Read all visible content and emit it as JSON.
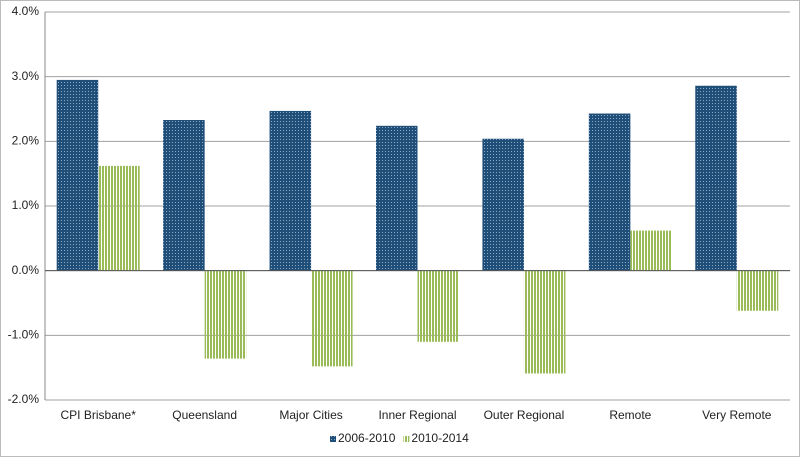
{
  "chart_data": {
    "type": "bar",
    "categories": [
      "CPI Brisbane*",
      "Queensland",
      "Major Cities",
      "Inner Regional",
      "Outer Regional",
      "Remote",
      "Very Remote"
    ],
    "series": [
      {
        "name": "2006-2010",
        "color": "#1f4e79",
        "values": [
          2.95,
          2.33,
          2.47,
          2.24,
          2.04,
          2.43,
          2.86
        ]
      },
      {
        "name": "2010-2014",
        "color": "#9bbb59",
        "values": [
          1.62,
          -1.36,
          -1.48,
          -1.1,
          -1.59,
          0.62,
          -0.62
        ]
      }
    ],
    "ylim": [
      -2,
      4
    ],
    "yticks": [
      {
        "value": -2,
        "label": "-2.0%"
      },
      {
        "value": -1,
        "label": "-1.0%"
      },
      {
        "value": 0,
        "label": "0.0%"
      },
      {
        "value": 1,
        "label": "1.0%"
      },
      {
        "value": 2,
        "label": "2.0%"
      },
      {
        "value": 3,
        "label": "3.0%"
      },
      {
        "value": 4,
        "label": "4.0%"
      }
    ],
    "grid": true,
    "legend": "bottom"
  }
}
